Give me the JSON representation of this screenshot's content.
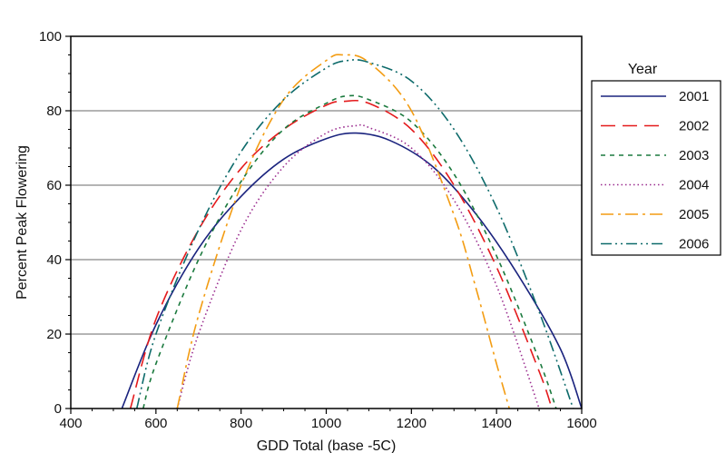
{
  "chart_data": {
    "type": "line",
    "title": "",
    "xlabel": "GDD Total (base -5C)",
    "ylabel": "Percent Peak Flowering",
    "xlim": [
      400,
      1600
    ],
    "ylim": [
      0,
      100
    ],
    "xticks": [
      400,
      600,
      800,
      1000,
      1200,
      1400,
      1600
    ],
    "yticks": [
      0,
      20,
      40,
      60,
      80,
      100
    ],
    "grid": "horizontal",
    "legend": {
      "title": "Year",
      "placement": "right"
    },
    "series": [
      {
        "name": "2001",
        "color": "#1a237e",
        "dash": "solid",
        "x": [
          520,
          600,
          700,
          800,
          900,
          1000,
          1070,
          1150,
          1250,
          1350,
          1450,
          1550,
          1600
        ],
        "y": [
          0,
          22.5,
          43,
          57,
          67,
          72.5,
          74,
          72,
          65,
          52.5,
          36,
          16,
          0
        ]
      },
      {
        "name": "2002",
        "color": "#e41a1c",
        "dash": "long-dash",
        "x": [
          540,
          600,
          700,
          800,
          900,
          1000,
          1040,
          1100,
          1200,
          1300,
          1400,
          1500,
          1530
        ],
        "y": [
          0,
          24,
          48,
          64.5,
          75,
          81.5,
          82.5,
          82,
          75,
          60,
          38,
          10,
          0
        ]
      },
      {
        "name": "2003",
        "color": "#1b7a3e",
        "dash": "short-dash",
        "x": [
          570,
          600,
          700,
          800,
          900,
          1000,
          1050,
          1100,
          1200,
          1300,
          1400,
          1500,
          1540
        ],
        "y": [
          0,
          12,
          40,
          61,
          75,
          82,
          84,
          83,
          77,
          63,
          41,
          13,
          0
        ]
      },
      {
        "name": "2004",
        "color": "#9b2d8f",
        "dash": "dotted",
        "x": [
          650,
          700,
          800,
          900,
          1000,
          1070,
          1100,
          1200,
          1300,
          1400,
          1500
        ],
        "y": [
          0,
          20,
          48,
          65,
          74,
          76,
          75.5,
          70,
          56,
          33,
          0
        ]
      },
      {
        "name": "2005",
        "color": "#f39c12",
        "dash": "dash-dot",
        "x": [
          650,
          700,
          800,
          900,
          1000,
          1040,
          1100,
          1200,
          1300,
          1350,
          1400,
          1430
        ],
        "y": [
          0,
          25,
          60,
          83,
          93.5,
          95,
          93,
          80,
          52,
          33,
          12,
          0
        ]
      },
      {
        "name": "2006",
        "color": "#0e6b6b",
        "dash": "dash-dot-dot",
        "x": [
          555,
          600,
          700,
          800,
          900,
          1000,
          1050,
          1100,
          1200,
          1300,
          1400,
          1500,
          1580
        ],
        "y": [
          0,
          20,
          48,
          69,
          83,
          91.5,
          93.5,
          93,
          88,
          75,
          54,
          26,
          0
        ]
      }
    ]
  }
}
